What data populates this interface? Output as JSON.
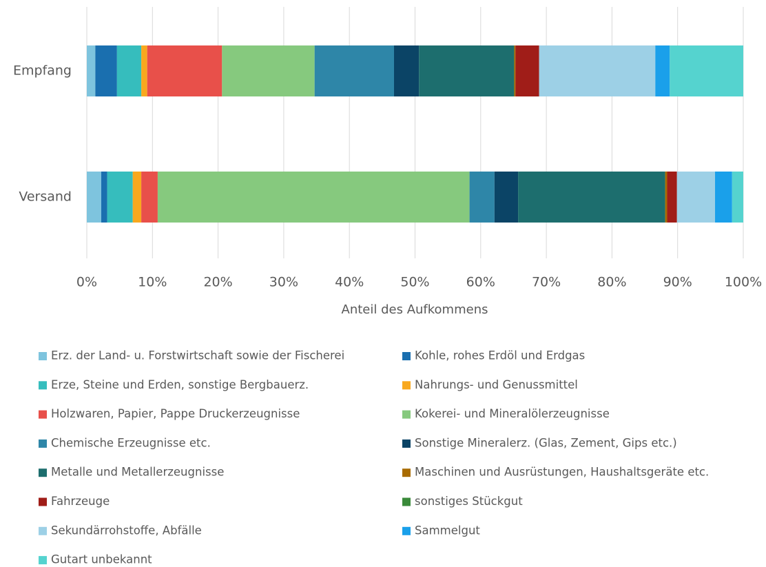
{
  "chart_data": {
    "type": "stacked_barh",
    "xlabel": "Anteil des Aufkommens",
    "categories": [
      "Empfang",
      "Versand"
    ],
    "series": [
      {
        "name": "Erz. der Land- u. Forstwirtschaft sowie der Fischerei",
        "color": "#7ec4de",
        "values": [
          1.3,
          2.2
        ]
      },
      {
        "name": "Kohle, rohes Erdöl und Erdgas",
        "color": "#1a6faf",
        "values": [
          3.3,
          0.9
        ]
      },
      {
        "name": "Erze, Steine und Erden, sonstige Bergbauerz.",
        "color": "#36bdbd",
        "values": [
          3.7,
          3.9
        ]
      },
      {
        "name": "Nahrungs- und Genussmittel",
        "color": "#f8a81e",
        "values": [
          0.9,
          1.3
        ]
      },
      {
        "name": "Holzwaren, Papier, Pappe Druckerzeugnisse",
        "color": "#e8504a",
        "values": [
          11.4,
          2.5
        ]
      },
      {
        "name": "Kokerei- und Mineralölerzeugnisse",
        "color": "#86c97e",
        "values": [
          14.1,
          47.5
        ]
      },
      {
        "name": "Chemische Erzeugnisse etc.",
        "color": "#2e86a8",
        "values": [
          12.1,
          3.8
        ]
      },
      {
        "name": "Sonstige Mineralerz. (Glas, Zement, Gips etc.)",
        "color": "#0b4466",
        "values": [
          3.8,
          3.6
        ]
      },
      {
        "name": "Metalle und Metallerzeugnisse",
        "color": "#1d6e6e",
        "values": [
          14.5,
          22.4
        ]
      },
      {
        "name": "Maschinen und Ausrüstungen, Haushaltsgeräte etc.",
        "color": "#a86b00",
        "values": [
          0.2,
          0.3
        ]
      },
      {
        "name": "Fahrzeuge",
        "color": "#a01d18",
        "values": [
          3.6,
          1.5
        ]
      },
      {
        "name": "sonstiges Stückgut",
        "color": "#3a8a3a",
        "values": [
          0,
          0
        ]
      },
      {
        "name": "Sekundärrohstoffe, Abfälle",
        "color": "#9dd0e6",
        "values": [
          17.7,
          5.8
        ]
      },
      {
        "name": "Sammelgut",
        "color": "#1aa0ea",
        "values": [
          2.2,
          2.6
        ]
      },
      {
        "name": "Gutart unbekannt",
        "color": "#55d3cf",
        "values": [
          11.2,
          1.7
        ]
      }
    ],
    "xlim": [
      0,
      100
    ],
    "xticks": [
      {
        "value": 0,
        "label": "0%"
      },
      {
        "value": 10,
        "label": "10%"
      },
      {
        "value": 20,
        "label": "20%"
      },
      {
        "value": 30,
        "label": "30%"
      },
      {
        "value": 40,
        "label": "40%"
      },
      {
        "value": 50,
        "label": "50%"
      },
      {
        "value": 60,
        "label": "60%"
      },
      {
        "value": 70,
        "label": "70%"
      },
      {
        "value": 80,
        "label": "80%"
      },
      {
        "value": 90,
        "label": "90%"
      },
      {
        "value": 100,
        "label": "100%"
      }
    ],
    "grid": true,
    "legend": "bottom"
  }
}
